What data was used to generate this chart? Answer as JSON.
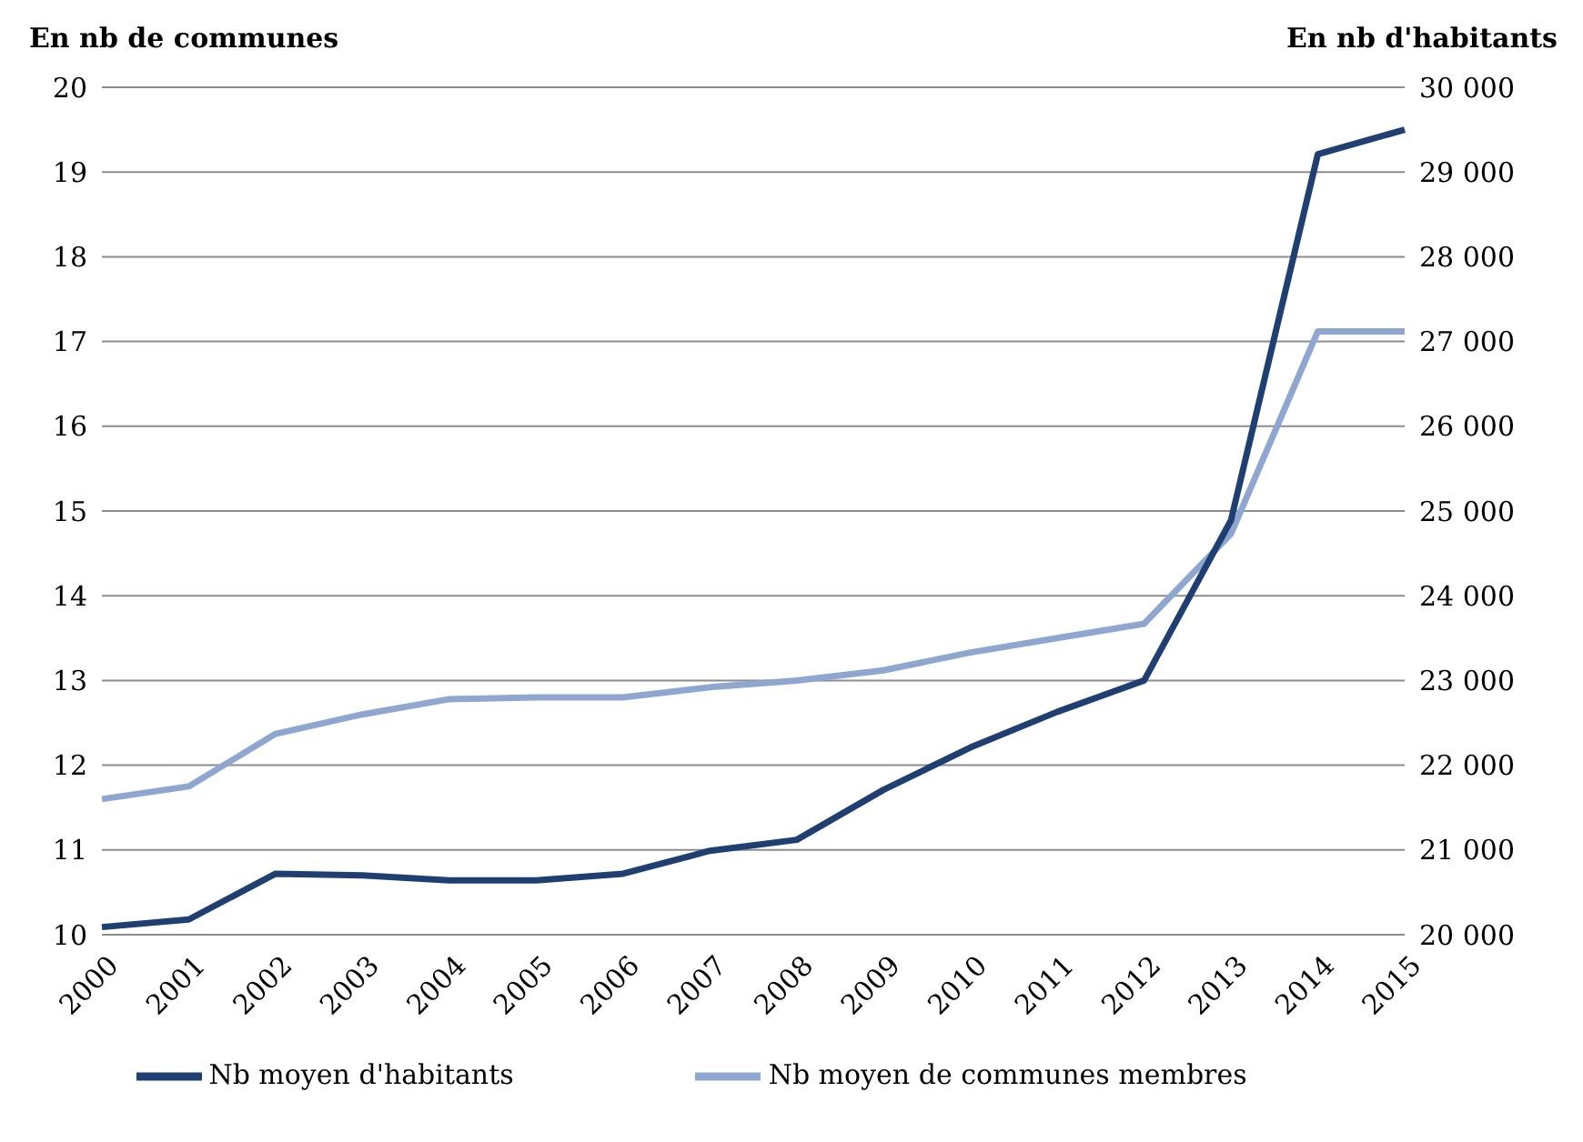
{
  "chart_data": {
    "type": "line",
    "ylabel": "En nb de communes",
    "y2label": "En nb d'habitants",
    "categories": [
      "2000",
      "2001",
      "2002",
      "2003",
      "2004",
      "2005",
      "2006",
      "2007",
      "2008",
      "2009",
      "2010",
      "2011",
      "2012",
      "2013",
      "2014",
      "2015"
    ],
    "series": [
      {
        "name": "Nb moyen de communes membres",
        "color": "#8fa7d0",
        "values": [
          11.6,
          11.75,
          12.37,
          12.6,
          12.78,
          12.8,
          12.8,
          12.92,
          13.0,
          13.12,
          13.33,
          13.5,
          13.67,
          14.73,
          17.12,
          17.12
        ]
      },
      {
        "name": "Nb moyen d'habitants",
        "color": "#1f3f73",
        "axis": "y2",
        "values": [
          20090,
          20180,
          20720,
          20700,
          20640,
          20640,
          20720,
          20990,
          21120,
          21710,
          22210,
          22630,
          23000,
          24890,
          29210,
          29500
        ]
      }
    ],
    "ylim": [
      10,
      20
    ],
    "yticks": [
      10,
      11,
      12,
      13,
      14,
      15,
      16,
      17,
      18,
      19,
      20
    ],
    "y2lim": [
      20000,
      30000
    ],
    "y2ticks": [
      {
        "value": 20000,
        "label": "20 000"
      },
      {
        "value": 21000,
        "label": "21 000"
      },
      {
        "value": 22000,
        "label": "22 000"
      },
      {
        "value": 23000,
        "label": "23 000"
      },
      {
        "value": 24000,
        "label": "24 000"
      },
      {
        "value": 25000,
        "label": "25 000"
      },
      {
        "value": 26000,
        "label": "26 000"
      },
      {
        "value": 27000,
        "label": "27 000"
      },
      {
        "value": 28000,
        "label": "28 000"
      },
      {
        "value": 29000,
        "label": "29 000"
      },
      {
        "value": 30000,
        "label": "30 000"
      }
    ],
    "grid": "y",
    "legend": "bottom",
    "marker": "none",
    "line_style": "solid"
  }
}
